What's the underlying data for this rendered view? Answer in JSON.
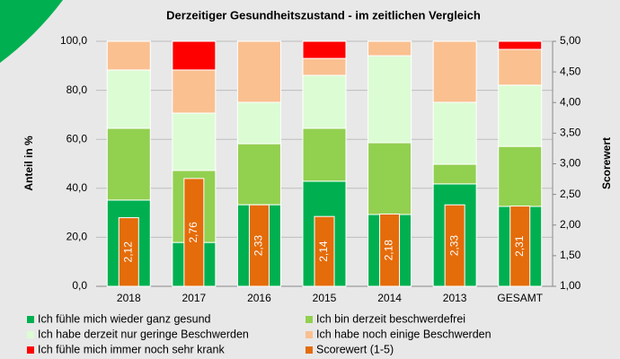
{
  "chart_data": {
    "type": "bar",
    "stacked": true,
    "title": "Derzeitiger Gesundheitszustand - im zeitlichen Vergleich",
    "ylabel": "Anteil in %",
    "y2label": "Scorewert",
    "categories": [
      "2018",
      "2017",
      "2016",
      "2015",
      "2014",
      "2013",
      "GESAMT"
    ],
    "series": [
      {
        "name": "Ich fühle mich wieder ganz gesund",
        "color": "#00b050",
        "values": [
          35.2,
          17.9,
          33.3,
          42.9,
          29.3,
          41.8,
          32.6
        ]
      },
      {
        "name": "Ich bin derzeit beschwerdefrei",
        "color": "#92d050",
        "values": [
          29.3,
          29.4,
          24.9,
          21.6,
          29.3,
          8.0,
          24.5
        ]
      },
      {
        "name": "Ich habe derzeit nur geringe Beschwerden",
        "color": "#dcfcd4",
        "values": [
          23.8,
          23.4,
          16.9,
          21.6,
          35.5,
          25.3,
          25.0
        ]
      },
      {
        "name": "Ich habe noch einige Beschwerden",
        "color": "#fac090",
        "values": [
          11.7,
          17.6,
          24.9,
          6.9,
          5.9,
          24.9,
          14.6
        ]
      },
      {
        "name": "Ich fühle mich immer noch sehr krank",
        "color": "#ff0000",
        "values": [
          0,
          11.7,
          0,
          7.0,
          0,
          0,
          3.3
        ]
      },
      {
        "name": "Scorewert (1-5)",
        "color": "#e46c0a",
        "axis": "y2",
        "values": [
          2.12,
          2.76,
          2.33,
          2.14,
          2.18,
          2.33,
          2.31
        ],
        "value_labels": [
          "2,12",
          "2,76",
          "2,33",
          "2,14",
          "2,18",
          "2,33",
          "2,31"
        ]
      }
    ],
    "ylim": [
      0,
      100
    ],
    "yticks": [
      {
        "value": 0,
        "label": "0,0"
      },
      {
        "value": 20,
        "label": "20,0"
      },
      {
        "value": 40,
        "label": "40,0"
      },
      {
        "value": 60,
        "label": "60,0"
      },
      {
        "value": 80,
        "label": "80,0"
      },
      {
        "value": 100,
        "label": "100,0"
      }
    ],
    "y2lim": [
      1,
      5
    ],
    "y2ticks": [
      {
        "value": 1,
        "label": "1,00"
      },
      {
        "value": 1.5,
        "label": "1,50"
      },
      {
        "value": 2,
        "label": "2,00"
      },
      {
        "value": 2.5,
        "label": "2,50"
      },
      {
        "value": 3,
        "label": "3,00"
      },
      {
        "value": 3.5,
        "label": "3,50"
      },
      {
        "value": 4,
        "label": "4,00"
      },
      {
        "value": 4.5,
        "label": "4,50"
      },
      {
        "value": 5,
        "label": "5,00"
      }
    ],
    "grid": true
  }
}
